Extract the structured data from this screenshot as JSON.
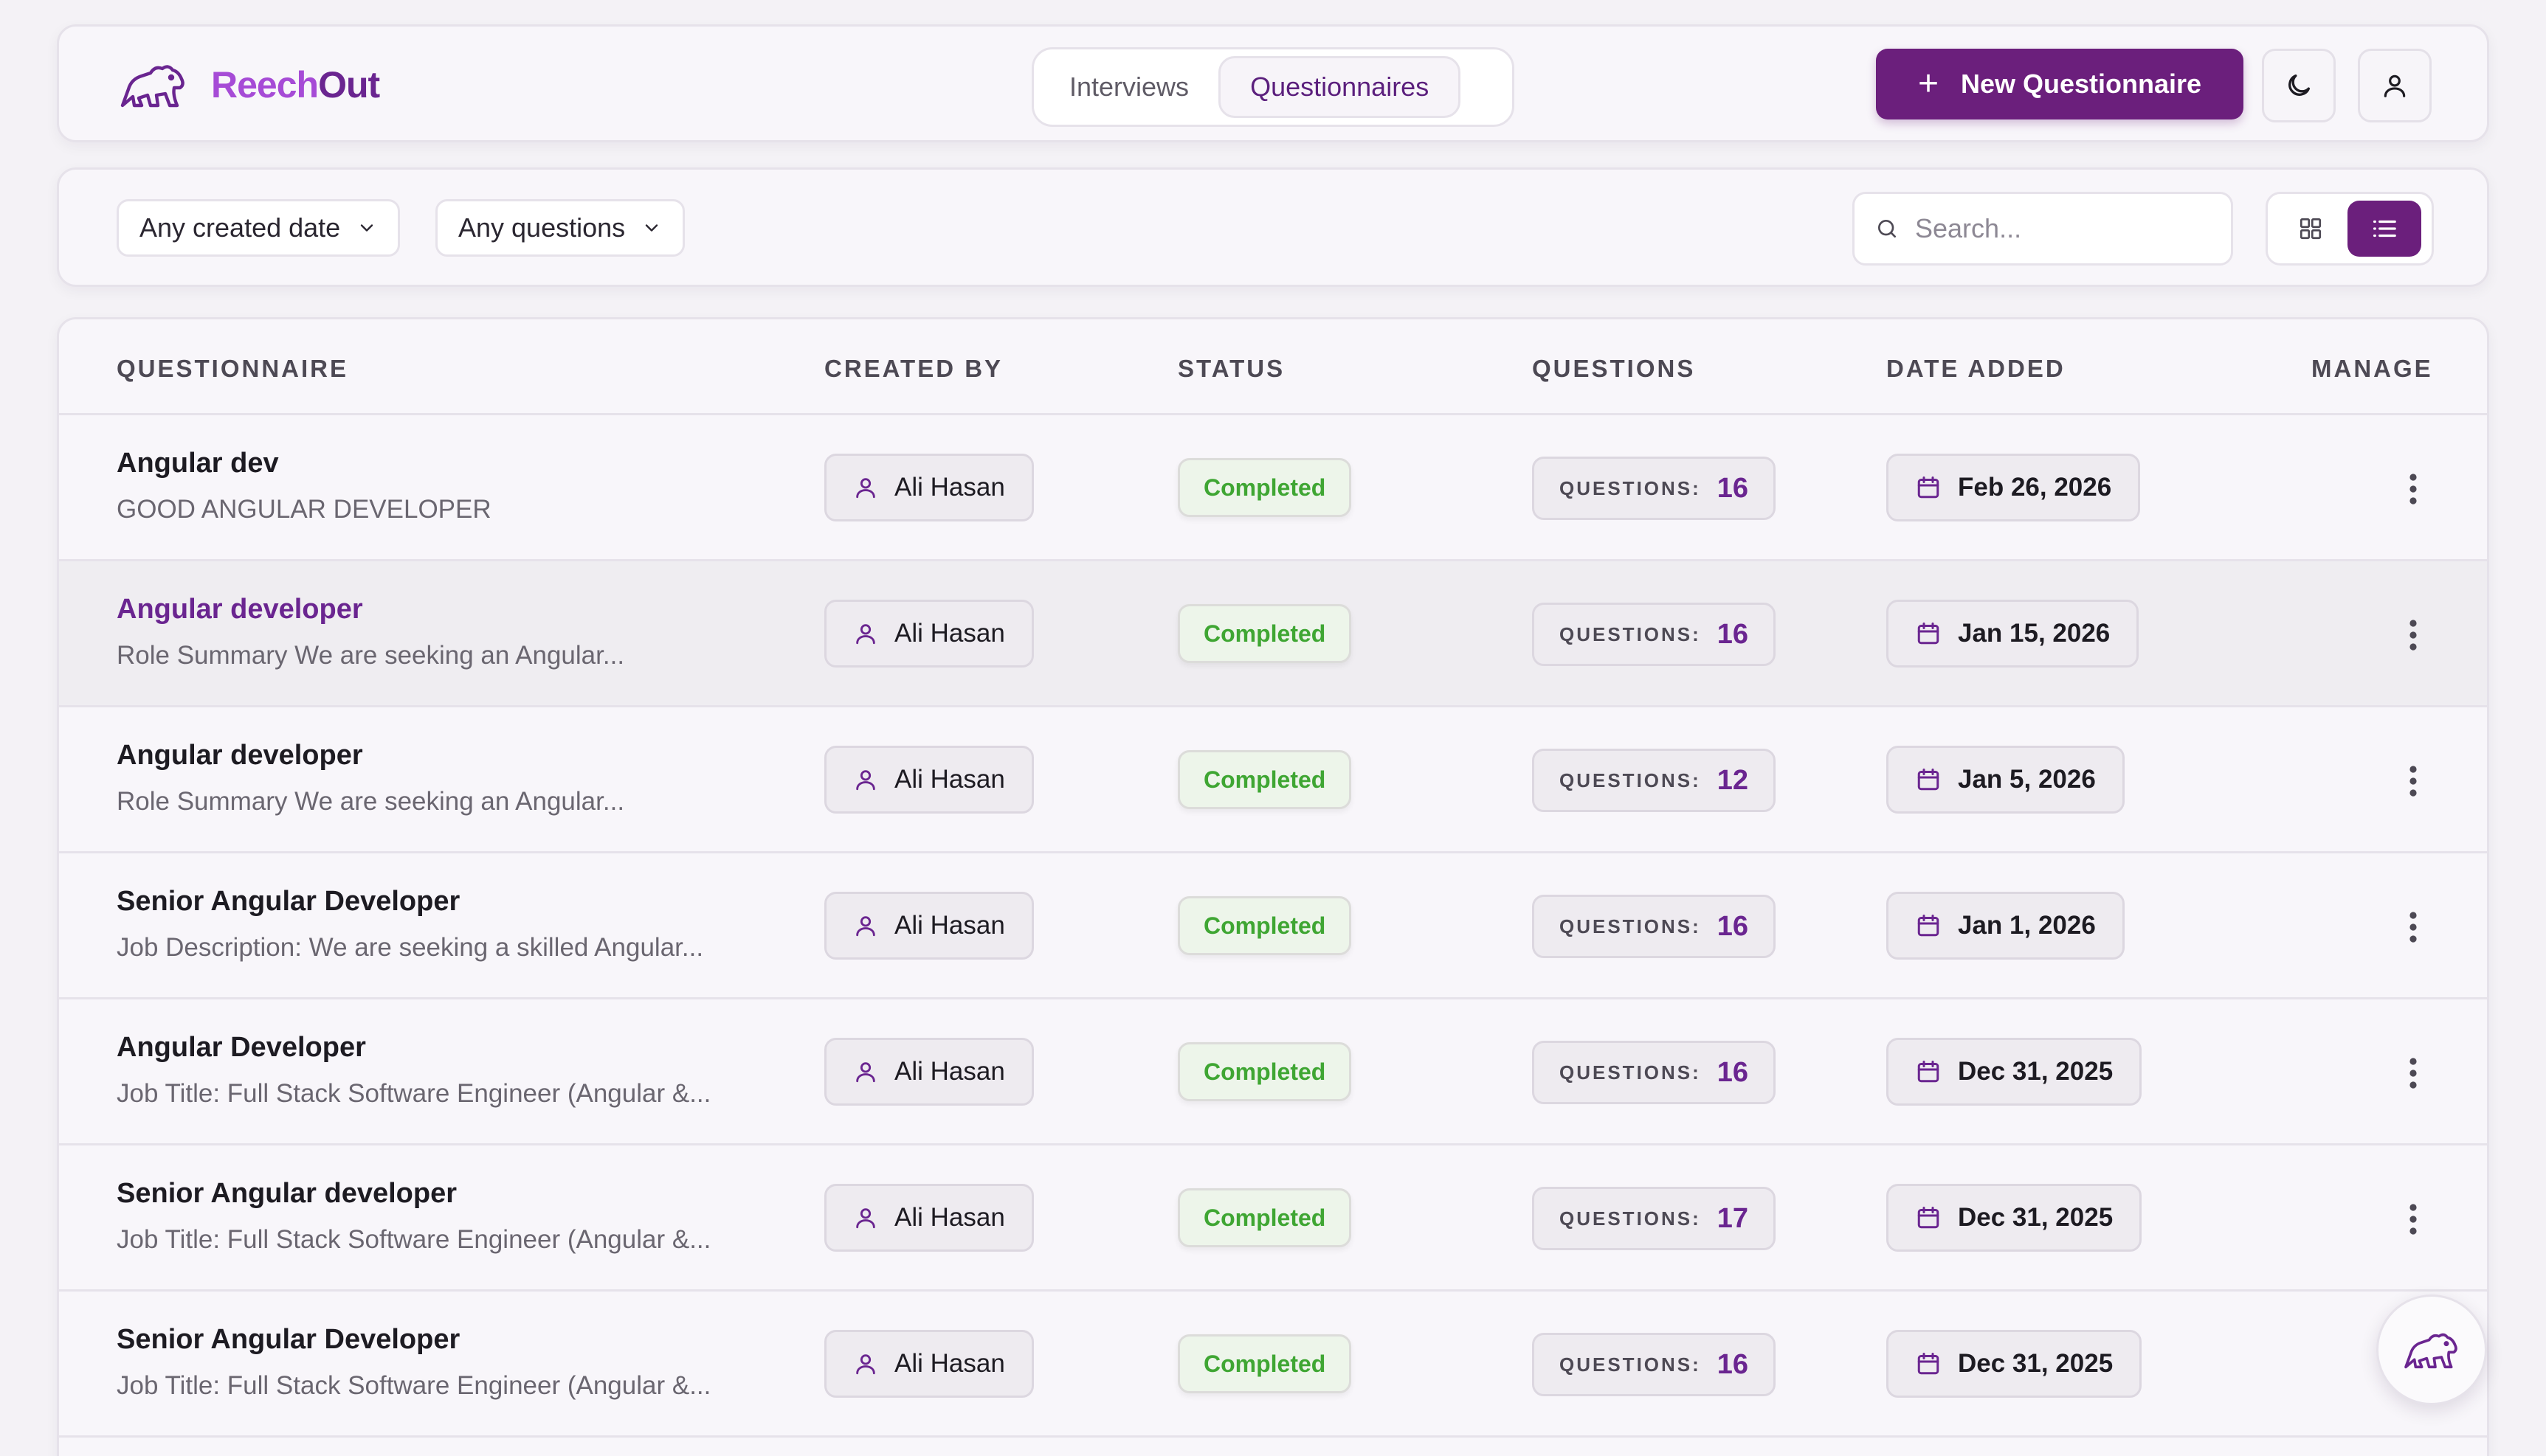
{
  "app": {
    "logo_part1": "Reech",
    "logo_part2": "Out"
  },
  "header": {
    "tabs": [
      {
        "label": "Interviews",
        "active": false
      },
      {
        "label": "Questionnaires",
        "active": true
      }
    ],
    "new_button_label": "New Questionnaire"
  },
  "filters": {
    "date_label": "Any created date",
    "questions_label": "Any questions",
    "search_placeholder": "Search...",
    "view_mode": "list"
  },
  "table": {
    "headers": {
      "questionnaire": "QUESTIONNAIRE",
      "created_by": "CREATED BY",
      "status": "STATUS",
      "questions": "QUESTIONS",
      "date_added": "DATE ADDED",
      "manage": "MANAGE"
    },
    "questions_prefix": "QUESTIONS:",
    "rows": [
      {
        "title": "Angular dev",
        "description": "GOOD ANGULAR DEVELOPER",
        "created_by": "Ali Hasan",
        "status": "Completed",
        "questions": "16",
        "date": "Feb 26, 2026"
      },
      {
        "title": "Angular developer",
        "description": "Role Summary We are seeking an Angular...",
        "created_by": "Ali Hasan",
        "status": "Completed",
        "questions": "16",
        "date": "Jan 15, 2026"
      },
      {
        "title": "Angular developer",
        "description": "Role Summary We are seeking an Angular...",
        "created_by": "Ali Hasan",
        "status": "Completed",
        "questions": "12",
        "date": "Jan 5, 2026"
      },
      {
        "title": "Senior Angular Developer",
        "description": "Job Description: We are seeking a skilled Angular...",
        "created_by": "Ali Hasan",
        "status": "Completed",
        "questions": "16",
        "date": "Jan 1, 2026"
      },
      {
        "title": "Angular Developer",
        "description": "Job Title: Full Stack Software Engineer (Angular &...",
        "created_by": "Ali Hasan",
        "status": "Completed",
        "questions": "16",
        "date": "Dec 31, 2025"
      },
      {
        "title": "Senior Angular developer",
        "description": "Job Title: Full Stack Software Engineer (Angular &...",
        "created_by": "Ali Hasan",
        "status": "Completed",
        "questions": "17",
        "date": "Dec 31, 2025"
      },
      {
        "title": "Senior Angular Developer",
        "description": "Job Title: Full Stack Software Engineer (Angular &...",
        "created_by": "Ali Hasan",
        "status": "Completed",
        "questions": "16",
        "date": "Dec 31, 2025"
      }
    ]
  },
  "icons": {
    "logo": "bear-logo-icon",
    "theme": "moon-icon",
    "user": "user-icon",
    "search": "search-icon",
    "grid": "grid-icon",
    "list": "list-icon",
    "calendar": "calendar-icon",
    "manage": "kebab-menu-icon",
    "fab": "bear-assistant-icon"
  },
  "colors": {
    "brand": "#6b1f7c",
    "status_completed": "#3fa633"
  }
}
